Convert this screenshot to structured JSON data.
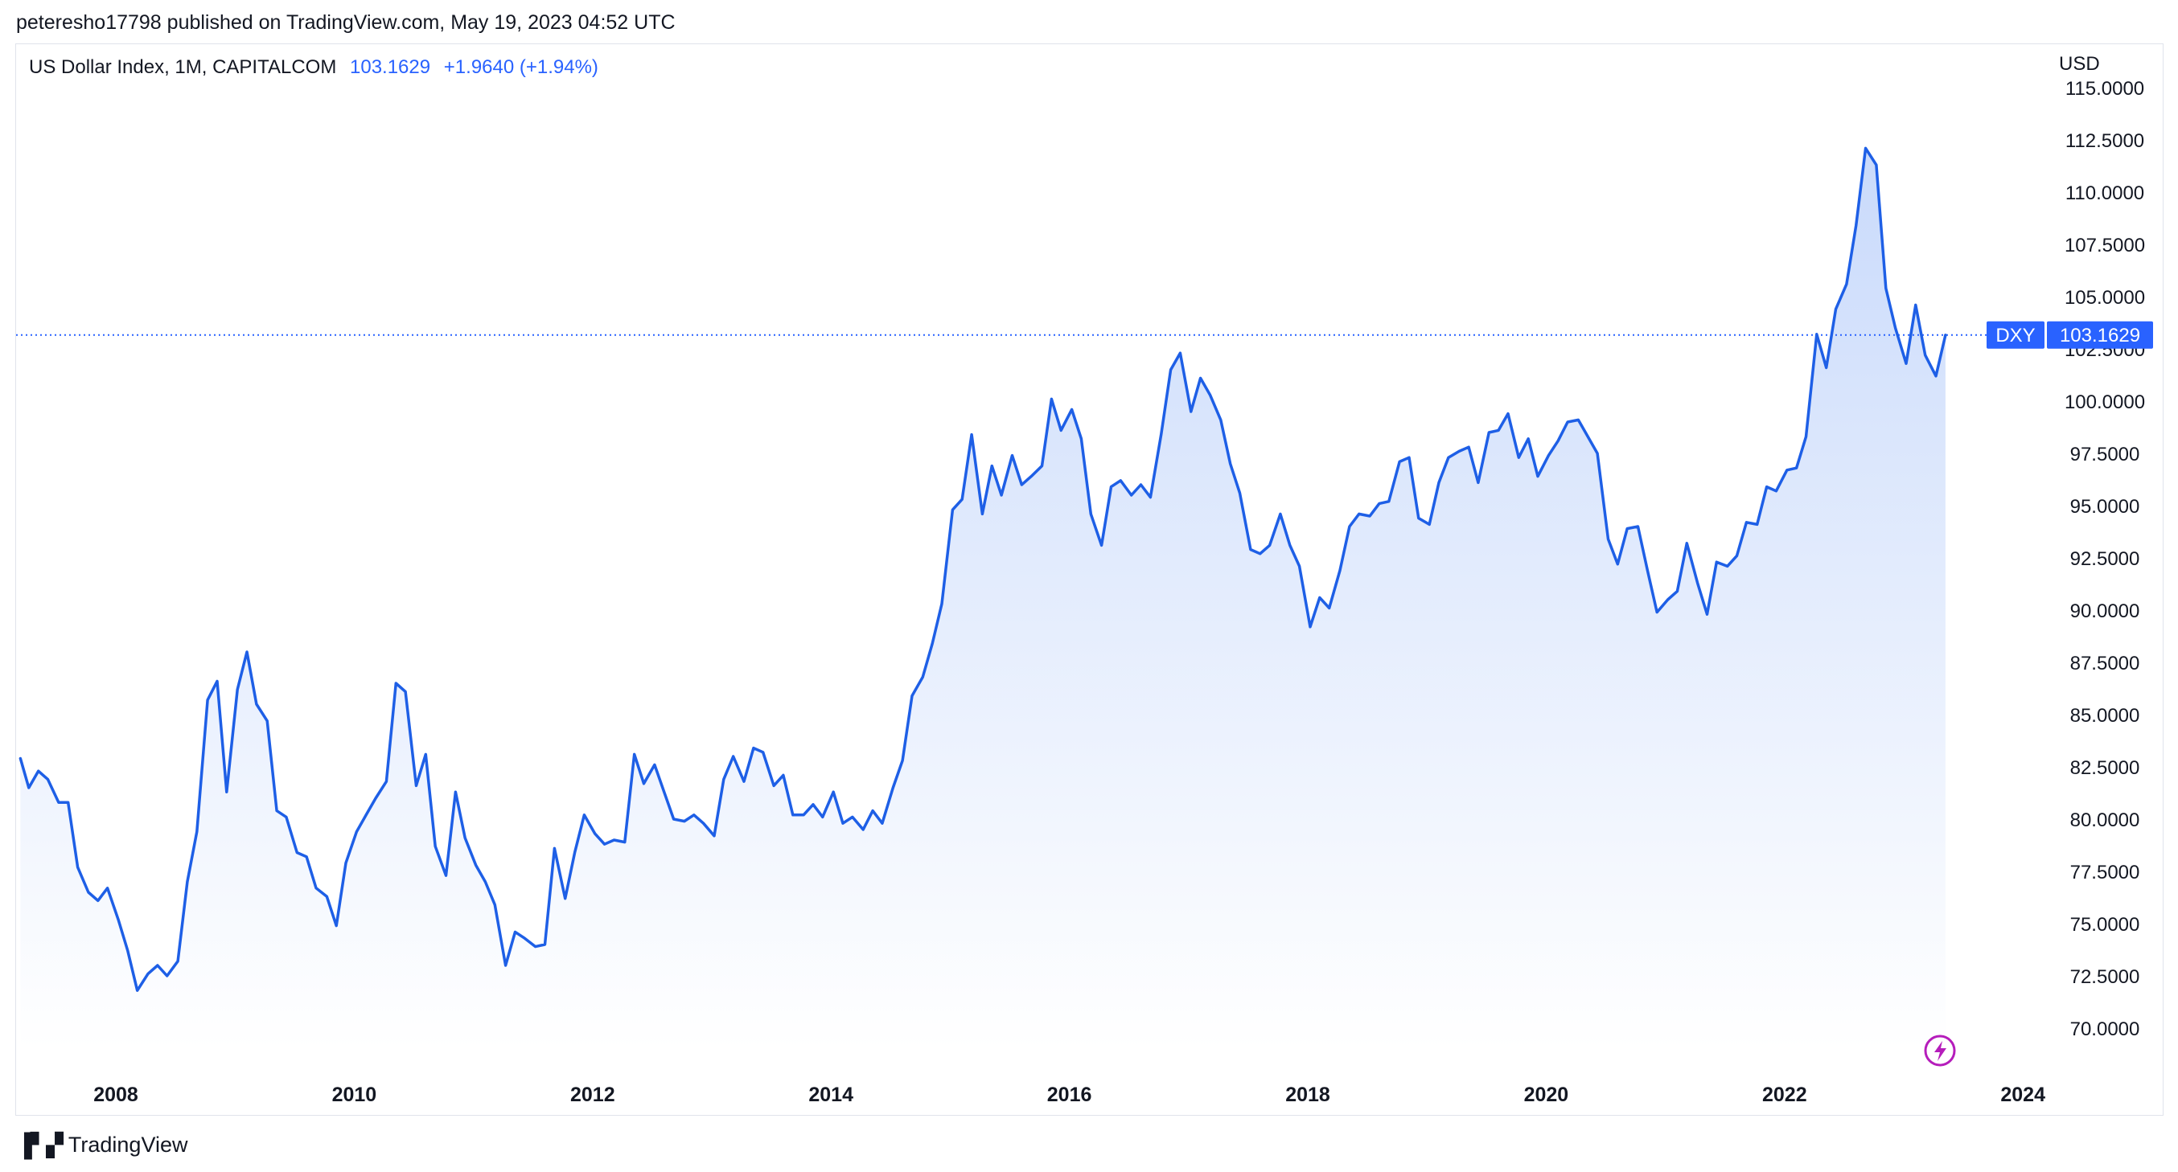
{
  "header": {
    "published_by": "peteresho17798 published on TradingView.com, May 19, 2023 04:52 UTC"
  },
  "legend": {
    "symbol_desc": "US Dollar Index, 1M, CAPITALCOM",
    "last_value": "103.1629",
    "change": "+1.9640 (+1.94%)"
  },
  "axis": {
    "currency": "USD"
  },
  "price_tag": {
    "ticker": "DXY",
    "value": "103.1629"
  },
  "footer": {
    "brand": "TradingView"
  },
  "colors": {
    "line": "#1e5fe6",
    "accent": "#2962ff",
    "area_top": "#c9dafb",
    "area_bottom": "#ffffff",
    "grid_text": "#131722",
    "badge_bg": "#2962ff",
    "flash_icon": "#b51dbb"
  },
  "icons": {
    "flash": "lightning-bolt-icon",
    "logo": "tradingview-logo-icon"
  },
  "chart_data": {
    "type": "area",
    "title": "US Dollar Index, 1M, CAPITALCOM",
    "ylabel": "USD",
    "xlabel": "",
    "ylim": [
      68.0,
      115.0
    ],
    "xlim": [
      2007.2,
      2024.5
    ],
    "y_ticks": [
      "115.0000",
      "112.5000",
      "110.0000",
      "107.5000",
      "105.0000",
      "102.5000",
      "100.0000",
      "97.5000",
      "95.0000",
      "92.5000",
      "90.0000",
      "87.5000",
      "85.0000",
      "82.5000",
      "80.0000",
      "77.5000",
      "75.0000",
      "72.5000",
      "70.0000"
    ],
    "x_ticks": [
      "2008",
      "2010",
      "2012",
      "2014",
      "2016",
      "2018",
      "2020",
      "2022",
      "2024"
    ],
    "last_price": 103.1629,
    "series": [
      {
        "name": "DXY",
        "points": [
          [
            2007.2,
            82.9
          ],
          [
            2007.27,
            81.5
          ],
          [
            2007.35,
            82.3
          ],
          [
            2007.43,
            81.9
          ],
          [
            2007.52,
            80.8
          ],
          [
            2007.6,
            80.8
          ],
          [
            2007.68,
            77.7
          ],
          [
            2007.77,
            76.5
          ],
          [
            2007.85,
            76.1
          ],
          [
            2007.93,
            76.7
          ],
          [
            2008.02,
            75.2
          ],
          [
            2008.1,
            73.7
          ],
          [
            2008.18,
            71.8
          ],
          [
            2008.27,
            72.6
          ],
          [
            2008.35,
            73.0
          ],
          [
            2008.43,
            72.5
          ],
          [
            2008.52,
            73.2
          ],
          [
            2008.6,
            77.0
          ],
          [
            2008.68,
            79.4
          ],
          [
            2008.77,
            85.7
          ],
          [
            2008.85,
            86.6
          ],
          [
            2008.93,
            81.3
          ],
          [
            2009.02,
            86.2
          ],
          [
            2009.1,
            88.0
          ],
          [
            2009.18,
            85.5
          ],
          [
            2009.27,
            84.7
          ],
          [
            2009.35,
            80.4
          ],
          [
            2009.43,
            80.1
          ],
          [
            2009.52,
            78.4
          ],
          [
            2009.6,
            78.2
          ],
          [
            2009.68,
            76.7
          ],
          [
            2009.77,
            76.3
          ],
          [
            2009.85,
            74.9
          ],
          [
            2009.93,
            77.9
          ],
          [
            2010.02,
            79.4
          ],
          [
            2010.1,
            80.2
          ],
          [
            2010.18,
            81.0
          ],
          [
            2010.27,
            81.8
          ],
          [
            2010.35,
            86.5
          ],
          [
            2010.43,
            86.1
          ],
          [
            2010.52,
            81.6
          ],
          [
            2010.6,
            83.1
          ],
          [
            2010.68,
            78.7
          ],
          [
            2010.77,
            77.3
          ],
          [
            2010.85,
            81.3
          ],
          [
            2010.93,
            79.1
          ],
          [
            2011.02,
            77.8
          ],
          [
            2011.1,
            77.0
          ],
          [
            2011.18,
            75.9
          ],
          [
            2011.27,
            73.0
          ],
          [
            2011.35,
            74.6
          ],
          [
            2011.43,
            74.3
          ],
          [
            2011.52,
            73.9
          ],
          [
            2011.6,
            74.0
          ],
          [
            2011.68,
            78.6
          ],
          [
            2011.77,
            76.2
          ],
          [
            2011.85,
            78.4
          ],
          [
            2011.93,
            80.2
          ],
          [
            2012.02,
            79.3
          ],
          [
            2012.1,
            78.8
          ],
          [
            2012.18,
            79.0
          ],
          [
            2012.27,
            78.9
          ],
          [
            2012.35,
            83.1
          ],
          [
            2012.43,
            81.7
          ],
          [
            2012.52,
            82.6
          ],
          [
            2012.6,
            81.3
          ],
          [
            2012.68,
            80.0
          ],
          [
            2012.77,
            79.9
          ],
          [
            2012.85,
            80.2
          ],
          [
            2012.93,
            79.8
          ],
          [
            2013.02,
            79.2
          ],
          [
            2013.1,
            81.9
          ],
          [
            2013.18,
            83.0
          ],
          [
            2013.27,
            81.8
          ],
          [
            2013.35,
            83.4
          ],
          [
            2013.43,
            83.2
          ],
          [
            2013.52,
            81.6
          ],
          [
            2013.6,
            82.1
          ],
          [
            2013.68,
            80.2
          ],
          [
            2013.77,
            80.2
          ],
          [
            2013.85,
            80.7
          ],
          [
            2013.93,
            80.1
          ],
          [
            2014.02,
            81.3
          ],
          [
            2014.1,
            79.8
          ],
          [
            2014.18,
            80.1
          ],
          [
            2014.27,
            79.5
          ],
          [
            2014.35,
            80.4
          ],
          [
            2014.43,
            79.8
          ],
          [
            2014.52,
            81.5
          ],
          [
            2014.6,
            82.8
          ],
          [
            2014.68,
            85.9
          ],
          [
            2014.77,
            86.8
          ],
          [
            2014.85,
            88.4
          ],
          [
            2014.93,
            90.3
          ],
          [
            2015.02,
            94.8
          ],
          [
            2015.1,
            95.3
          ],
          [
            2015.18,
            98.4
          ],
          [
            2015.27,
            94.6
          ],
          [
            2015.35,
            96.9
          ],
          [
            2015.43,
            95.5
          ],
          [
            2015.52,
            97.4
          ],
          [
            2015.6,
            96.0
          ],
          [
            2015.68,
            96.4
          ],
          [
            2015.77,
            96.9
          ],
          [
            2015.85,
            100.1
          ],
          [
            2015.93,
            98.6
          ],
          [
            2016.02,
            99.6
          ],
          [
            2016.1,
            98.2
          ],
          [
            2016.18,
            94.6
          ],
          [
            2016.27,
            93.1
          ],
          [
            2016.35,
            95.9
          ],
          [
            2016.43,
            96.2
          ],
          [
            2016.52,
            95.5
          ],
          [
            2016.6,
            96.0
          ],
          [
            2016.68,
            95.4
          ],
          [
            2016.77,
            98.4
          ],
          [
            2016.85,
            101.5
          ],
          [
            2016.93,
            102.3
          ],
          [
            2017.02,
            99.5
          ],
          [
            2017.1,
            101.1
          ],
          [
            2017.18,
            100.3
          ],
          [
            2017.27,
            99.1
          ],
          [
            2017.35,
            97.0
          ],
          [
            2017.43,
            95.6
          ],
          [
            2017.52,
            92.9
          ],
          [
            2017.6,
            92.7
          ],
          [
            2017.68,
            93.1
          ],
          [
            2017.77,
            94.6
          ],
          [
            2017.85,
            93.1
          ],
          [
            2017.93,
            92.1
          ],
          [
            2018.02,
            89.2
          ],
          [
            2018.1,
            90.6
          ],
          [
            2018.18,
            90.1
          ],
          [
            2018.27,
            91.9
          ],
          [
            2018.35,
            94.0
          ],
          [
            2018.43,
            94.6
          ],
          [
            2018.52,
            94.5
          ],
          [
            2018.6,
            95.1
          ],
          [
            2018.68,
            95.2
          ],
          [
            2018.77,
            97.1
          ],
          [
            2018.85,
            97.3
          ],
          [
            2018.93,
            94.4
          ],
          [
            2019.02,
            94.1
          ],
          [
            2019.1,
            96.1
          ],
          [
            2019.18,
            97.3
          ],
          [
            2019.27,
            97.6
          ],
          [
            2019.35,
            97.8
          ],
          [
            2019.43,
            96.1
          ],
          [
            2019.52,
            98.5
          ],
          [
            2019.6,
            98.6
          ],
          [
            2019.68,
            99.4
          ],
          [
            2019.77,
            97.3
          ],
          [
            2019.85,
            98.2
          ],
          [
            2019.93,
            96.4
          ],
          [
            2020.02,
            97.4
          ],
          [
            2020.1,
            98.1
          ],
          [
            2020.18,
            99.0
          ],
          [
            2020.27,
            99.1
          ],
          [
            2020.35,
            98.3
          ],
          [
            2020.43,
            97.5
          ],
          [
            2020.52,
            93.4
          ],
          [
            2020.6,
            92.2
          ],
          [
            2020.68,
            93.9
          ],
          [
            2020.77,
            94.0
          ],
          [
            2020.85,
            91.9
          ],
          [
            2020.93,
            89.9
          ],
          [
            2021.02,
            90.5
          ],
          [
            2021.1,
            90.9
          ],
          [
            2021.18,
            93.2
          ],
          [
            2021.27,
            91.3
          ],
          [
            2021.35,
            89.8
          ],
          [
            2021.43,
            92.3
          ],
          [
            2021.52,
            92.1
          ],
          [
            2021.6,
            92.6
          ],
          [
            2021.68,
            94.2
          ],
          [
            2021.77,
            94.1
          ],
          [
            2021.85,
            95.9
          ],
          [
            2021.93,
            95.7
          ],
          [
            2022.02,
            96.7
          ],
          [
            2022.1,
            96.8
          ],
          [
            2022.18,
            98.3
          ],
          [
            2022.27,
            103.2
          ],
          [
            2022.35,
            101.6
          ],
          [
            2022.43,
            104.4
          ],
          [
            2022.52,
            105.6
          ],
          [
            2022.6,
            108.4
          ],
          [
            2022.68,
            112.1
          ],
          [
            2022.77,
            111.3
          ],
          [
            2022.85,
            105.4
          ],
          [
            2022.93,
            103.5
          ],
          [
            2023.02,
            101.8
          ],
          [
            2023.1,
            104.6
          ],
          [
            2023.18,
            102.2
          ],
          [
            2023.27,
            101.2
          ],
          [
            2023.35,
            103.16
          ]
        ]
      }
    ]
  }
}
